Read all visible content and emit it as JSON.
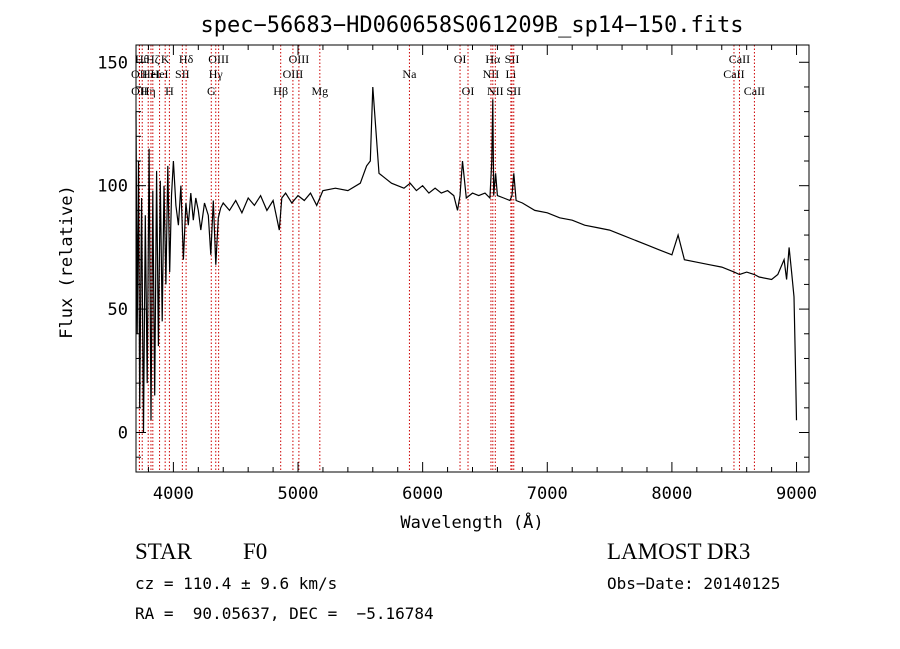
{
  "chart_data": {
    "type": "line",
    "title": "spec−56683−HD060658S061209B_sp14−150.fits",
    "xlabel": "Wavelength (Å)",
    "ylabel": "Flux (relative)",
    "xlim": [
      3700,
      9100
    ],
    "ylim": [
      -16,
      157
    ],
    "xticks": [
      4000,
      5000,
      6000,
      7000,
      8000,
      9000
    ],
    "yticks": [
      0,
      50,
      100,
      150
    ],
    "grid": false,
    "line_color": "#000000",
    "marker_color": "#cc0000",
    "series": [
      {
        "x": [
          3700,
          3710,
          3720,
          3730,
          3745,
          3760,
          3775,
          3790,
          3805,
          3820,
          3835,
          3850,
          3865,
          3880,
          3895,
          3910,
          3925,
          3940,
          3955,
          3970,
          3985,
          4000,
          4020,
          4040,
          4060,
          4080,
          4100,
          4120,
          4140,
          4160,
          4180,
          4200,
          4220,
          4250,
          4280,
          4300,
          4320,
          4340,
          4360,
          4380,
          4400,
          4450,
          4500,
          4550,
          4600,
          4650,
          4700,
          4750,
          4800,
          4850,
          4870,
          4900,
          4950,
          5000,
          5050,
          5100,
          5150,
          5200,
          5300,
          5400,
          5500,
          5550,
          5580,
          5600,
          5650,
          5700,
          5750,
          5800,
          5850,
          5900,
          5950,
          6000,
          6050,
          6100,
          6150,
          6200,
          6250,
          6280,
          6300,
          6320,
          6350,
          6400,
          6450,
          6500,
          6540,
          6555,
          6563,
          6570,
          6585,
          6600,
          6650,
          6700,
          6717,
          6731,
          6750,
          6800,
          6900,
          7000,
          7100,
          7200,
          7300,
          7400,
          7500,
          7600,
          7700,
          7800,
          7900,
          8000,
          8050,
          8100,
          8200,
          8300,
          8400,
          8500,
          8542,
          8600,
          8662,
          8700,
          8800,
          8850,
          8900,
          8920,
          8940,
          8960,
          8970,
          8980,
          8990,
          9000
        ],
        "y": [
          130,
          40,
          110,
          10,
          95,
          0,
          88,
          20,
          115,
          5,
          98,
          15,
          106,
          35,
          102,
          45,
          100,
          60,
          108,
          65,
          96,
          110,
          92,
          84,
          100,
          70,
          93,
          84,
          97,
          86,
          95,
          90,
          82,
          93,
          88,
          72,
          94,
          68,
          87,
          91,
          93,
          90,
          94,
          89,
          95,
          92,
          96,
          90,
          94,
          82,
          95,
          97,
          93,
          96,
          94,
          97,
          92,
          98,
          99,
          98,
          101,
          108,
          110,
          140,
          105,
          103,
          101,
          100,
          99,
          101,
          98,
          100,
          97,
          99,
          97,
          98,
          96,
          90,
          96,
          110,
          95,
          97,
          96,
          97,
          95,
          110,
          135,
          96,
          105,
          96,
          95,
          94,
          96,
          105,
          94,
          93,
          90,
          89,
          87,
          86,
          84,
          83,
          82,
          80,
          78,
          76,
          74,
          72,
          80,
          70,
          69,
          68,
          67,
          65,
          64,
          65,
          64,
          63,
          62,
          64,
          70,
          62,
          75,
          65,
          60,
          55,
          30,
          5
        ]
      }
    ],
    "lines": [
      {
        "x": 3727,
        "label": "OII",
        "row": 2
      },
      {
        "x": 3728,
        "label": "OII",
        "row": 3
      },
      {
        "x": 3750,
        "label": "Hθ",
        "row": 1
      },
      {
        "x": 3798,
        "label": "Hη",
        "row": 3
      },
      {
        "x": 3820,
        "label": "HeI",
        "row": 2
      },
      {
        "x": 3835,
        "label": "Hζ",
        "row": 1
      },
      {
        "x": 3889,
        "label": "HeI",
        "row": 2
      },
      {
        "x": 3934,
        "label": "K",
        "row": 1
      },
      {
        "x": 3968,
        "label": "H",
        "row": 3
      },
      {
        "x": 4072,
        "label": "SII",
        "row": 2
      },
      {
        "x": 4102,
        "label": "Hδ",
        "row": 1
      },
      {
        "x": 4304,
        "label": "G",
        "row": 3
      },
      {
        "x": 4340,
        "label": "Hγ",
        "row": 2
      },
      {
        "x": 4363,
        "label": "OIII",
        "row": 1
      },
      {
        "x": 4861,
        "label": "Hβ",
        "row": 3
      },
      {
        "x": 4959,
        "label": "OIII",
        "row": 2
      },
      {
        "x": 5007,
        "label": "OIII",
        "row": 1
      },
      {
        "x": 5175,
        "label": "Mg",
        "row": 3
      },
      {
        "x": 5894,
        "label": "Na",
        "row": 2
      },
      {
        "x": 6300,
        "label": "OI",
        "row": 1
      },
      {
        "x": 6364,
        "label": "OI",
        "row": 3
      },
      {
        "x": 6548,
        "label": "NII",
        "row": 2
      },
      {
        "x": 6563,
        "label": "Hα",
        "row": 1
      },
      {
        "x": 6583,
        "label": "NII",
        "row": 3
      },
      {
        "x": 6708,
        "label": "Li",
        "row": 2
      },
      {
        "x": 6717,
        "label": "SII",
        "row": 1
      },
      {
        "x": 6731,
        "label": "SII",
        "row": 3
      },
      {
        "x": 8498,
        "label": "CaII",
        "row": 2
      },
      {
        "x": 8542,
        "label": "CaII",
        "row": 1
      },
      {
        "x": 8662,
        "label": "CaII",
        "row": 3
      }
    ]
  },
  "info": {
    "object_class": "STAR",
    "subclass": "F0",
    "survey": "LAMOST DR3",
    "cz": "cz = 110.4 ± 9.6 km/s",
    "obs_date": "Obs−Date: 20140125",
    "coords": "RA =  90.05637, DEC =  −5.16784"
  }
}
